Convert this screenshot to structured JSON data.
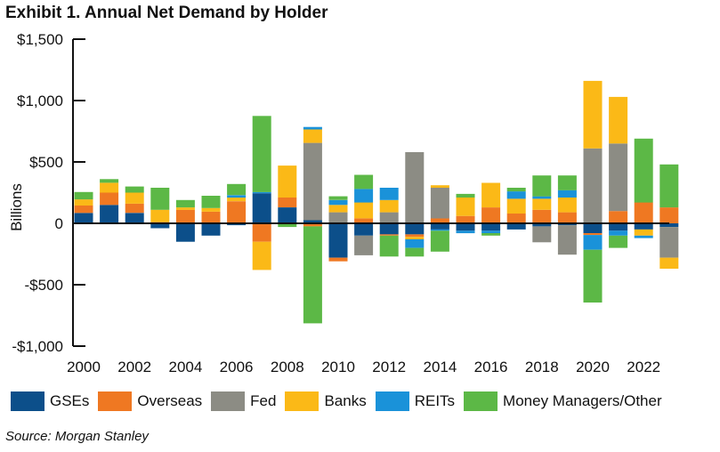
{
  "chart_data": {
    "type": "bar",
    "stacked": true,
    "title": "Exhibit 1. Annual Net Demand by Holder",
    "ylabel": "Billions",
    "xlabel": "",
    "ylim": [
      -1000,
      1500
    ],
    "yticks": [
      -1000,
      -500,
      0,
      500,
      1000,
      1500
    ],
    "ytick_labels": [
      "-$1,000",
      "-$500",
      "0",
      "$500",
      "$1,000",
      "$1,500"
    ],
    "xtick_labels": [
      "2000",
      "2002",
      "2004",
      "2006",
      "2008",
      "2010",
      "2012",
      "2014",
      "2016",
      "2018",
      "2020",
      "2022"
    ],
    "categories": [
      "2000",
      "2001",
      "2002",
      "2003",
      "2004",
      "2005",
      "2006",
      "2007",
      "2008",
      "2009",
      "2010",
      "2011",
      "2012",
      "2013",
      "2014",
      "2015",
      "2016",
      "2017",
      "2018",
      "2019",
      "2020",
      "2021",
      "2022",
      "2023"
    ],
    "series": [
      {
        "name": "GSEs",
        "color": "#0c4f8a",
        "values": [
          85,
          150,
          85,
          -40,
          -150,
          -100,
          -15,
          245,
          130,
          25,
          -280,
          -100,
          -90,
          -90,
          -50,
          -60,
          -60,
          -50,
          -25,
          -15,
          -80,
          -60,
          -50,
          -30
        ]
      },
      {
        "name": "Overseas",
        "color": "#ef7822",
        "values": [
          60,
          100,
          75,
          10,
          110,
          95,
          180,
          -150,
          80,
          -25,
          -30,
          40,
          -10,
          -20,
          40,
          60,
          130,
          80,
          110,
          90,
          -15,
          100,
          170,
          130
        ]
      },
      {
        "name": "Fed",
        "color": "#8c8c84",
        "values": [
          0,
          0,
          0,
          0,
          0,
          0,
          0,
          0,
          0,
          630,
          90,
          -160,
          90,
          580,
          250,
          0,
          0,
          0,
          -130,
          -240,
          610,
          550,
          0,
          -250
        ]
      },
      {
        "name": "Banks",
        "color": "#fbb917",
        "values": [
          50,
          80,
          90,
          100,
          20,
          30,
          30,
          -230,
          260,
          110,
          60,
          130,
          100,
          -20,
          20,
          150,
          200,
          120,
          90,
          120,
          550,
          380,
          -50,
          -90
        ]
      },
      {
        "name": "REITs",
        "color": "#1a92d9",
        "values": [
          0,
          0,
          0,
          0,
          0,
          0,
          20,
          10,
          0,
          20,
          40,
          110,
          100,
          -70,
          -10,
          -20,
          -20,
          60,
          20,
          60,
          -120,
          -40,
          -20,
          0
        ]
      },
      {
        "name": "Money Managers/Other",
        "color": "#5cb846",
        "values": [
          60,
          30,
          50,
          180,
          60,
          100,
          90,
          620,
          -30,
          -790,
          30,
          115,
          -170,
          -70,
          -170,
          30,
          -20,
          30,
          170,
          120,
          -430,
          -100,
          520,
          350
        ]
      }
    ]
  },
  "source_note": "Source: Morgan Stanley"
}
